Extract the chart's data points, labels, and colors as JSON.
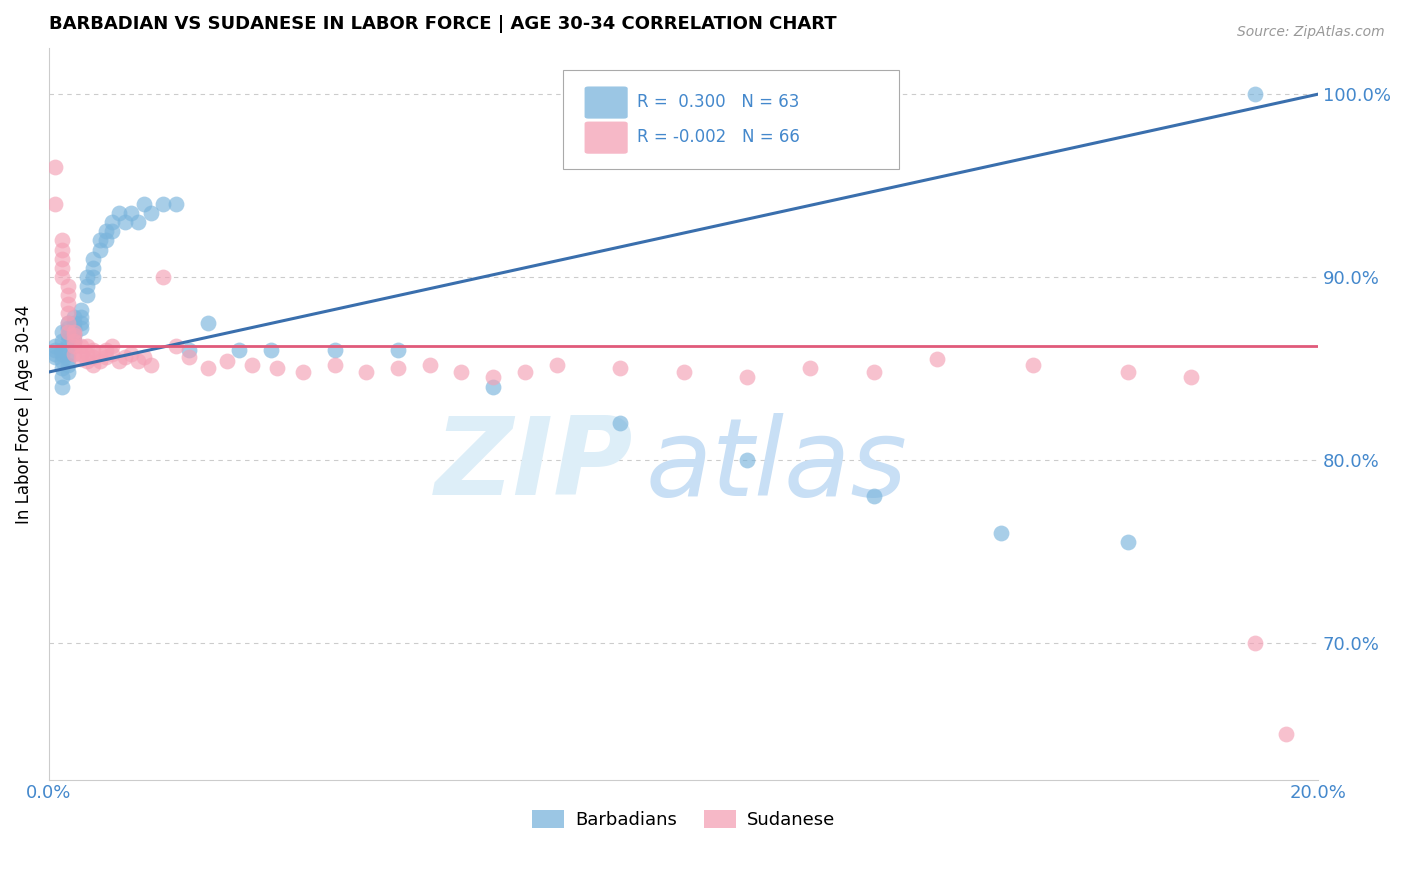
{
  "title": "BARBADIAN VS SUDANESE IN LABOR FORCE | AGE 30-34 CORRELATION CHART",
  "source": "Source: ZipAtlas.com",
  "ylabel": "In Labor Force | Age 30-34",
  "xlim": [
    0.0,
    0.2
  ],
  "ylim": [
    0.625,
    1.025
  ],
  "yticks": [
    0.7,
    0.8,
    0.9,
    1.0
  ],
  "ytick_labels": [
    "70.0%",
    "80.0%",
    "90.0%",
    "100.0%"
  ],
  "xticks": [
    0.0,
    0.02,
    0.04,
    0.06,
    0.08,
    0.1,
    0.12,
    0.14,
    0.16,
    0.18,
    0.2
  ],
  "legend_blue_label": "Barbadians",
  "legend_pink_label": "Sudanese",
  "R_blue": 0.3,
  "N_blue": 63,
  "R_pink": -0.002,
  "N_pink": 66,
  "blue_color": "#7ab4dc",
  "pink_color": "#f4a0b5",
  "trend_blue_color": "#3a6fad",
  "trend_pink_color": "#e05a7a",
  "axis_color": "#4488cc",
  "grid_color": "#cccccc",
  "background_color": "#ffffff",
  "blue_trend_x0": 0.0,
  "blue_trend_y0": 0.848,
  "blue_trend_x1": 0.2,
  "blue_trend_y1": 1.0,
  "pink_trend_x0": 0.0,
  "pink_trend_y0": 0.862,
  "pink_trend_x1": 0.2,
  "pink_trend_y1": 0.862,
  "blue_x": [
    0.001,
    0.001,
    0.001,
    0.001,
    0.002,
    0.002,
    0.002,
    0.002,
    0.002,
    0.002,
    0.002,
    0.002,
    0.003,
    0.003,
    0.003,
    0.003,
    0.003,
    0.003,
    0.003,
    0.003,
    0.003,
    0.004,
    0.004,
    0.004,
    0.004,
    0.004,
    0.005,
    0.005,
    0.005,
    0.005,
    0.006,
    0.006,
    0.006,
    0.007,
    0.007,
    0.007,
    0.008,
    0.008,
    0.009,
    0.009,
    0.01,
    0.01,
    0.011,
    0.012,
    0.013,
    0.014,
    0.015,
    0.016,
    0.018,
    0.02,
    0.022,
    0.025,
    0.03,
    0.035,
    0.045,
    0.055,
    0.07,
    0.09,
    0.11,
    0.13,
    0.15,
    0.17,
    0.19
  ],
  "blue_y": [
    0.86,
    0.862,
    0.858,
    0.856,
    0.87,
    0.865,
    0.86,
    0.858,
    0.854,
    0.85,
    0.845,
    0.84,
    0.875,
    0.872,
    0.868,
    0.865,
    0.862,
    0.858,
    0.855,
    0.852,
    0.848,
    0.878,
    0.875,
    0.872,
    0.868,
    0.865,
    0.882,
    0.878,
    0.875,
    0.872,
    0.9,
    0.895,
    0.89,
    0.91,
    0.905,
    0.9,
    0.92,
    0.915,
    0.925,
    0.92,
    0.93,
    0.925,
    0.935,
    0.93,
    0.935,
    0.93,
    0.94,
    0.935,
    0.94,
    0.94,
    0.86,
    0.875,
    0.86,
    0.86,
    0.86,
    0.86,
    0.84,
    0.82,
    0.8,
    0.78,
    0.76,
    0.755,
    1.0
  ],
  "pink_x": [
    0.001,
    0.001,
    0.002,
    0.002,
    0.002,
    0.002,
    0.002,
    0.003,
    0.003,
    0.003,
    0.003,
    0.003,
    0.003,
    0.004,
    0.004,
    0.004,
    0.004,
    0.004,
    0.005,
    0.005,
    0.005,
    0.006,
    0.006,
    0.006,
    0.007,
    0.007,
    0.007,
    0.008,
    0.008,
    0.009,
    0.009,
    0.01,
    0.01,
    0.011,
    0.012,
    0.013,
    0.014,
    0.015,
    0.016,
    0.018,
    0.02,
    0.022,
    0.025,
    0.028,
    0.032,
    0.036,
    0.04,
    0.045,
    0.05,
    0.055,
    0.06,
    0.065,
    0.07,
    0.075,
    0.08,
    0.09,
    0.1,
    0.11,
    0.12,
    0.13,
    0.14,
    0.155,
    0.17,
    0.18,
    0.19,
    0.195
  ],
  "pink_y": [
    0.96,
    0.94,
    0.92,
    0.915,
    0.91,
    0.905,
    0.9,
    0.895,
    0.89,
    0.885,
    0.88,
    0.875,
    0.87,
    0.87,
    0.868,
    0.865,
    0.862,
    0.858,
    0.862,
    0.858,
    0.855,
    0.862,
    0.858,
    0.854,
    0.86,
    0.856,
    0.852,
    0.858,
    0.854,
    0.86,
    0.856,
    0.862,
    0.858,
    0.854,
    0.856,
    0.858,
    0.854,
    0.856,
    0.852,
    0.9,
    0.862,
    0.856,
    0.85,
    0.854,
    0.852,
    0.85,
    0.848,
    0.852,
    0.848,
    0.85,
    0.852,
    0.848,
    0.845,
    0.848,
    0.852,
    0.85,
    0.848,
    0.845,
    0.85,
    0.848,
    0.855,
    0.852,
    0.848,
    0.845,
    0.7,
    0.65
  ]
}
